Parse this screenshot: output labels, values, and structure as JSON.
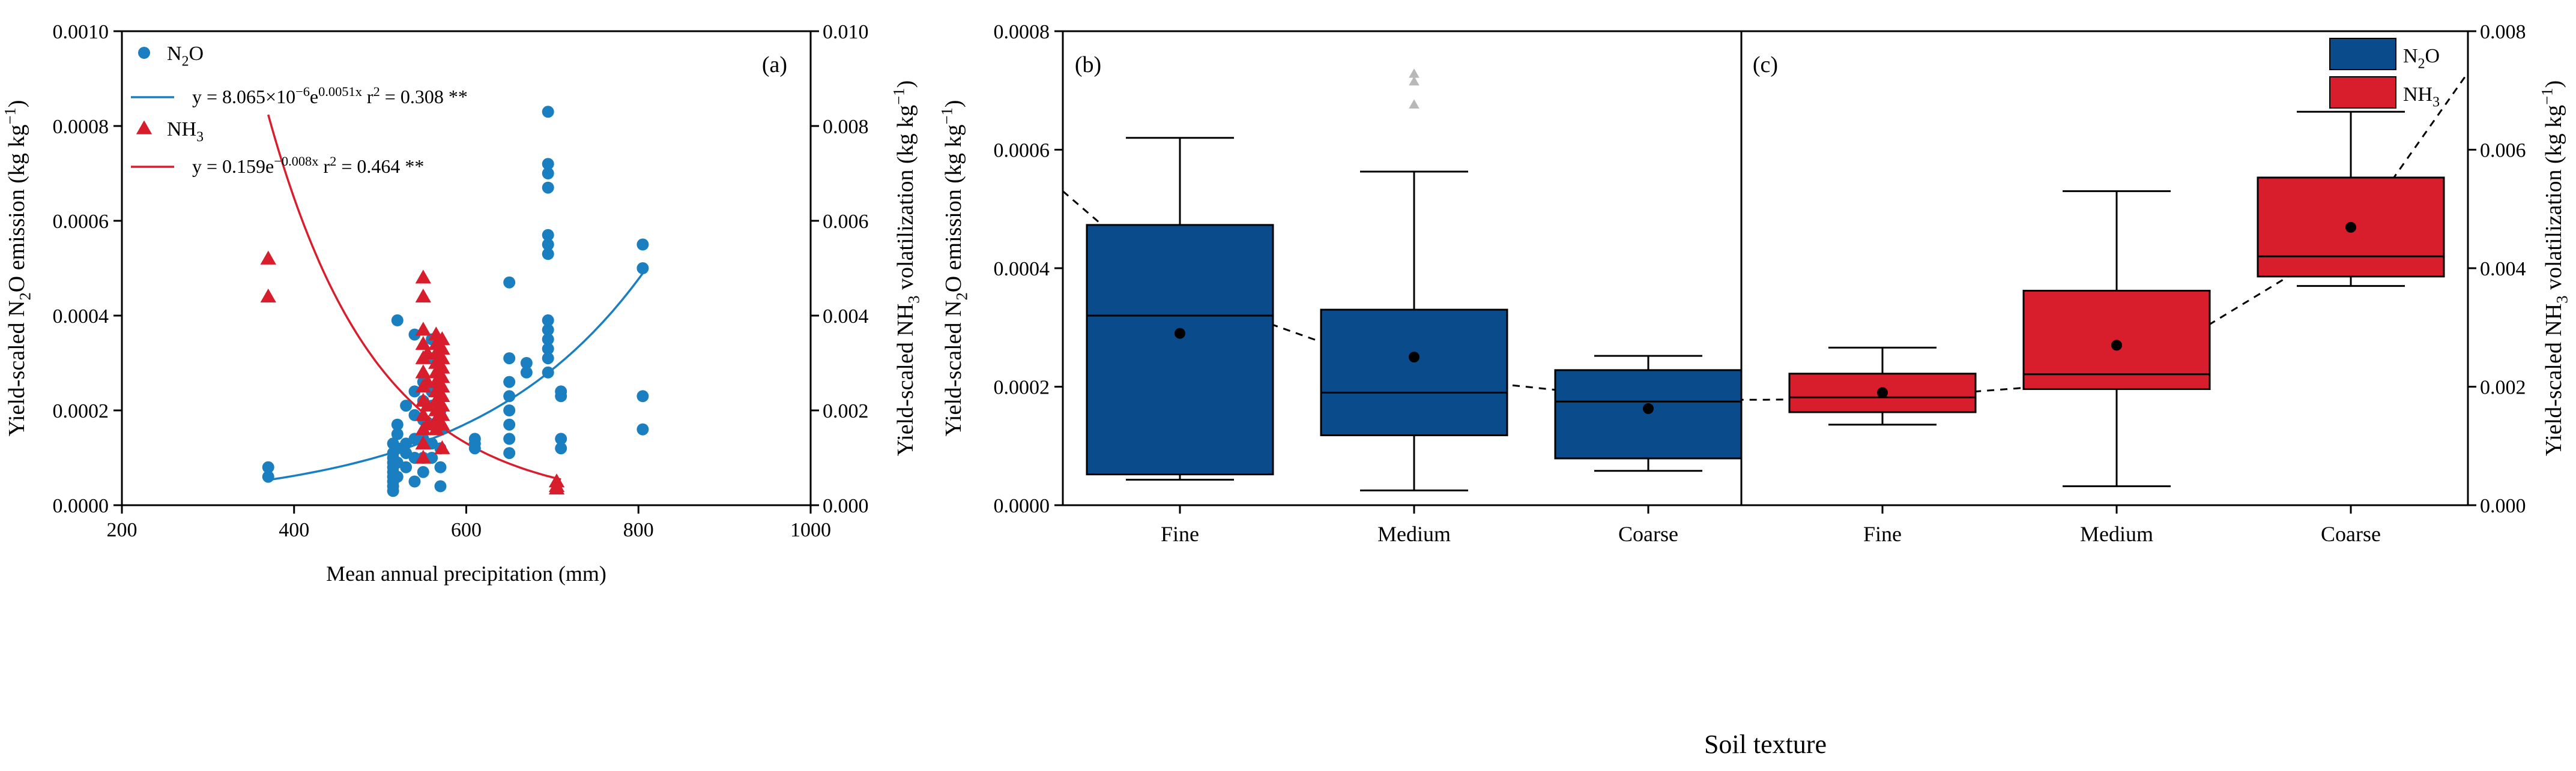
{
  "colors": {
    "n2o": "#1a7fc1",
    "nh3": "#d81e2c",
    "box_n2o": "#0a4b8c",
    "box_nh3": "#d81e2c",
    "outlier": "#b8b8b8"
  },
  "chart_data": [
    {
      "type": "scatter",
      "panel_label": "(a)",
      "xlabel": "Mean annual precipitation (mm)",
      "ylabel_left": {
        "pre": "Yield-scaled N",
        "sub": "2",
        "mid": "O emission (kg kg",
        "sup": "−1",
        "post": ")"
      },
      "ylabel_right": {
        "pre": "Yield-scaled NH",
        "sub": "3",
        "mid": " volatilization (kg kg",
        "sup": "−1",
        "post": ")"
      },
      "xlim": [
        200,
        1000
      ],
      "xticks": [
        "200",
        "400",
        "600",
        "800",
        "1000"
      ],
      "ylim_left": [
        0,
        0.001
      ],
      "yticks_left": [
        "0.0000",
        "0.0002",
        "0.0004",
        "0.0006",
        "0.0008",
        "0.0010"
      ],
      "ylim_right": [
        0,
        0.01
      ],
      "yticks_right": [
        "0.000",
        "0.002",
        "0.004",
        "0.006",
        "0.008",
        "0.010"
      ],
      "legend": {
        "n2o_name": {
          "pre": "N",
          "sub": "2",
          "post": "O"
        },
        "n2o_fit": {
          "base": "y = 8.065×10",
          "exp1": "−6",
          "e": "e",
          "exp2": "0.0051x",
          "r2_pre": "r",
          "r2_sup": "2",
          "r2_val": " = 0.308",
          "sig": "**"
        },
        "nh3_name": {
          "pre": "NH",
          "sub": "3",
          "post": ""
        },
        "nh3_fit": {
          "base": "y = 0.159e",
          "exp2": "−0.008x",
          "r2_pre": "r",
          "r2_sup": "2",
          "r2_val": " = 0.464",
          "sig": "**"
        }
      },
      "series": [
        {
          "name": "N2O",
          "marker": "circle",
          "axis": "left",
          "points": [
            [
              370,
              8e-05
            ],
            [
              370,
              6e-05
            ],
            [
              515,
              0.00013
            ],
            [
              515,
              0.00011
            ],
            [
              515,
              0.0001
            ],
            [
              515,
              9e-05
            ],
            [
              515,
              8e-05
            ],
            [
              515,
              7e-05
            ],
            [
              515,
              6e-05
            ],
            [
              515,
              5e-05
            ],
            [
              515,
              4e-05
            ],
            [
              515,
              3e-05
            ],
            [
              520,
              0.00039
            ],
            [
              520,
              0.00017
            ],
            [
              520,
              0.00015
            ],
            [
              520,
              0.00012
            ],
            [
              520,
              9e-05
            ],
            [
              520,
              6e-05
            ],
            [
              530,
              0.00021
            ],
            [
              530,
              0.00013
            ],
            [
              530,
              0.00011
            ],
            [
              530,
              8e-05
            ],
            [
              540,
              0.00036
            ],
            [
              540,
              0.00024
            ],
            [
              540,
              0.00019
            ],
            [
              540,
              0.00014
            ],
            [
              540,
              0.0001
            ],
            [
              540,
              5e-05
            ],
            [
              550,
              0.00026
            ],
            [
              550,
              0.00022
            ],
            [
              550,
              0.00018
            ],
            [
              550,
              0.00014
            ],
            [
              550,
              0.0001
            ],
            [
              550,
              7e-05
            ],
            [
              560,
              0.00035
            ],
            [
              560,
              0.00031
            ],
            [
              560,
              0.00024
            ],
            [
              560,
              0.00021
            ],
            [
              560,
              0.00017
            ],
            [
              560,
              0.00013
            ],
            [
              560,
              0.0001
            ],
            [
              570,
              0.0002
            ],
            [
              570,
              0.00016
            ],
            [
              570,
              0.00012
            ],
            [
              570,
              8e-05
            ],
            [
              570,
              4e-05
            ],
            [
              610,
              0.00014
            ],
            [
              610,
              0.00013
            ],
            [
              610,
              0.00012
            ],
            [
              650,
              0.00047
            ],
            [
              650,
              0.00031
            ],
            [
              650,
              0.00026
            ],
            [
              650,
              0.00023
            ],
            [
              650,
              0.0002
            ],
            [
              650,
              0.00017
            ],
            [
              650,
              0.00014
            ],
            [
              650,
              0.00011
            ],
            [
              670,
              0.0003
            ],
            [
              670,
              0.00028
            ],
            [
              695,
              0.00083
            ],
            [
              695,
              0.00072
            ],
            [
              695,
              0.0007
            ],
            [
              695,
              0.00067
            ],
            [
              695,
              0.00057
            ],
            [
              695,
              0.00055
            ],
            [
              695,
              0.00053
            ],
            [
              695,
              0.00039
            ],
            [
              695,
              0.00037
            ],
            [
              695,
              0.00035
            ],
            [
              695,
              0.00033
            ],
            [
              695,
              0.00031
            ],
            [
              695,
              0.00028
            ],
            [
              710,
              0.00024
            ],
            [
              710,
              0.00023
            ],
            [
              710,
              0.00014
            ],
            [
              710,
              0.00012
            ],
            [
              805,
              0.00055
            ],
            [
              805,
              0.0005
            ],
            [
              805,
              0.00023
            ],
            [
              805,
              0.00016
            ]
          ],
          "fit": {
            "a": 8.065e-06,
            "b": 0.0051,
            "x_from": 370,
            "x_to": 808
          }
        },
        {
          "name": "NH3",
          "marker": "triangle",
          "axis": "right",
          "points": [
            [
              370,
              0.0052
            ],
            [
              370,
              0.0044
            ],
            [
              550,
              0.0048
            ],
            [
              550,
              0.0044
            ],
            [
              550,
              0.0037
            ],
            [
              550,
              0.0034
            ],
            [
              550,
              0.0031
            ],
            [
              550,
              0.0028
            ],
            [
              550,
              0.0025
            ],
            [
              550,
              0.0022
            ],
            [
              550,
              0.0019
            ],
            [
              550,
              0.0016
            ],
            [
              550,
              0.0013
            ],
            [
              550,
              0.001
            ],
            [
              555,
              0.0032
            ],
            [
              555,
              0.0026
            ],
            [
              555,
              0.0021
            ],
            [
              555,
              0.0017
            ],
            [
              565,
              0.0036
            ],
            [
              565,
              0.0034
            ],
            [
              565,
              0.0032
            ],
            [
              565,
              0.003
            ],
            [
              565,
              0.0028
            ],
            [
              565,
              0.0026
            ],
            [
              565,
              0.0024
            ],
            [
              565,
              0.0022
            ],
            [
              565,
              0.002
            ],
            [
              565,
              0.0018
            ],
            [
              565,
              0.0016
            ],
            [
              572,
              0.0035
            ],
            [
              572,
              0.0033
            ],
            [
              572,
              0.0031
            ],
            [
              572,
              0.0029
            ],
            [
              572,
              0.0027
            ],
            [
              572,
              0.0025
            ],
            [
              572,
              0.0023
            ],
            [
              572,
              0.0021
            ],
            [
              572,
              0.0019
            ],
            [
              572,
              0.0017
            ],
            [
              572,
              0.0012
            ],
            [
              705,
              0.0005
            ],
            [
              705,
              0.0004
            ],
            [
              705,
              0.00035
            ]
          ],
          "fit": {
            "a": 0.159,
            "b": -0.008,
            "x_from": 370,
            "x_to": 710
          }
        }
      ]
    },
    {
      "type": "box",
      "panel_labels": [
        "(b)",
        "(c)"
      ],
      "xlabel": "Soil texture",
      "ylabel_left": {
        "pre": "Yield-scaled  N",
        "sub": "2",
        "mid": "O emission (kg kg",
        "sup": "−1",
        "post": ")"
      },
      "ylabel_right": {
        "pre": "Yield-scaled  NH",
        "sub": "3",
        "mid": " volatilization (kg kg",
        "sup": "−1",
        "post": ")"
      },
      "ylim_left": [
        0,
        0.0008
      ],
      "yticks_left": [
        "0.0000",
        "0.0002",
        "0.0004",
        "0.0006",
        "0.0008"
      ],
      "ylim_right": [
        0,
        0.008
      ],
      "yticks_right": [
        "0.000",
        "0.002",
        "0.004",
        "0.006",
        "0.008"
      ],
      "legend": [
        {
          "pre": "N",
          "sub": "2",
          "post": "O"
        },
        {
          "pre": "NH",
          "sub": "3",
          "post": ""
        }
      ],
      "categories": [
        "Fine",
        "Medium",
        "Coarse",
        "Fine",
        "Medium",
        "Coarse"
      ],
      "n2o_boxes": [
        {
          "category": "Fine",
          "min": 4.3e-05,
          "q1": 5.2e-05,
          "median": 0.00032,
          "q3": 0.000473,
          "max": 0.00062,
          "mean": 0.00029,
          "outliers": []
        },
        {
          "category": "Medium",
          "min": 2.5e-05,
          "q1": 0.000118,
          "median": 0.00019,
          "q3": 0.00033,
          "max": 0.000563,
          "mean": 0.00025,
          "outliers": [
            0.000728,
            0.000715,
            0.000676
          ]
        },
        {
          "category": "Coarse",
          "min": 5.8e-05,
          "q1": 7.9e-05,
          "median": 0.000175,
          "q3": 0.000228,
          "max": 0.000252,
          "mean": 0.000163,
          "outliers": []
        }
      ],
      "nh3_boxes": [
        {
          "category": "Fine",
          "min": 0.00136,
          "q1": 0.00157,
          "median": 0.00182,
          "q3": 0.00222,
          "max": 0.00266,
          "mean": 0.0019,
          "outliers": []
        },
        {
          "category": "Medium",
          "min": 0.00032,
          "q1": 0.00196,
          "median": 0.00221,
          "q3": 0.00362,
          "max": 0.0053,
          "mean": 0.0027,
          "outliers": []
        },
        {
          "category": "Coarse",
          "min": 0.0037,
          "q1": 0.00386,
          "median": 0.0042,
          "q3": 0.00553,
          "max": 0.00664,
          "mean": 0.00469,
          "outliers": []
        }
      ],
      "trend": {
        "style": "dashed",
        "points": [
          [
            -0.5,
            0.00053
          ],
          [
            0,
            0.00036
          ],
          [
            1,
            0.00022
          ],
          [
            2,
            0.000178
          ],
          [
            2.5,
            0.000178
          ],
          [
            3,
            0.00018
          ],
          [
            4,
            0.00021
          ],
          [
            5,
            0.00045
          ],
          [
            5.5,
            0.00073
          ]
        ]
      }
    }
  ]
}
